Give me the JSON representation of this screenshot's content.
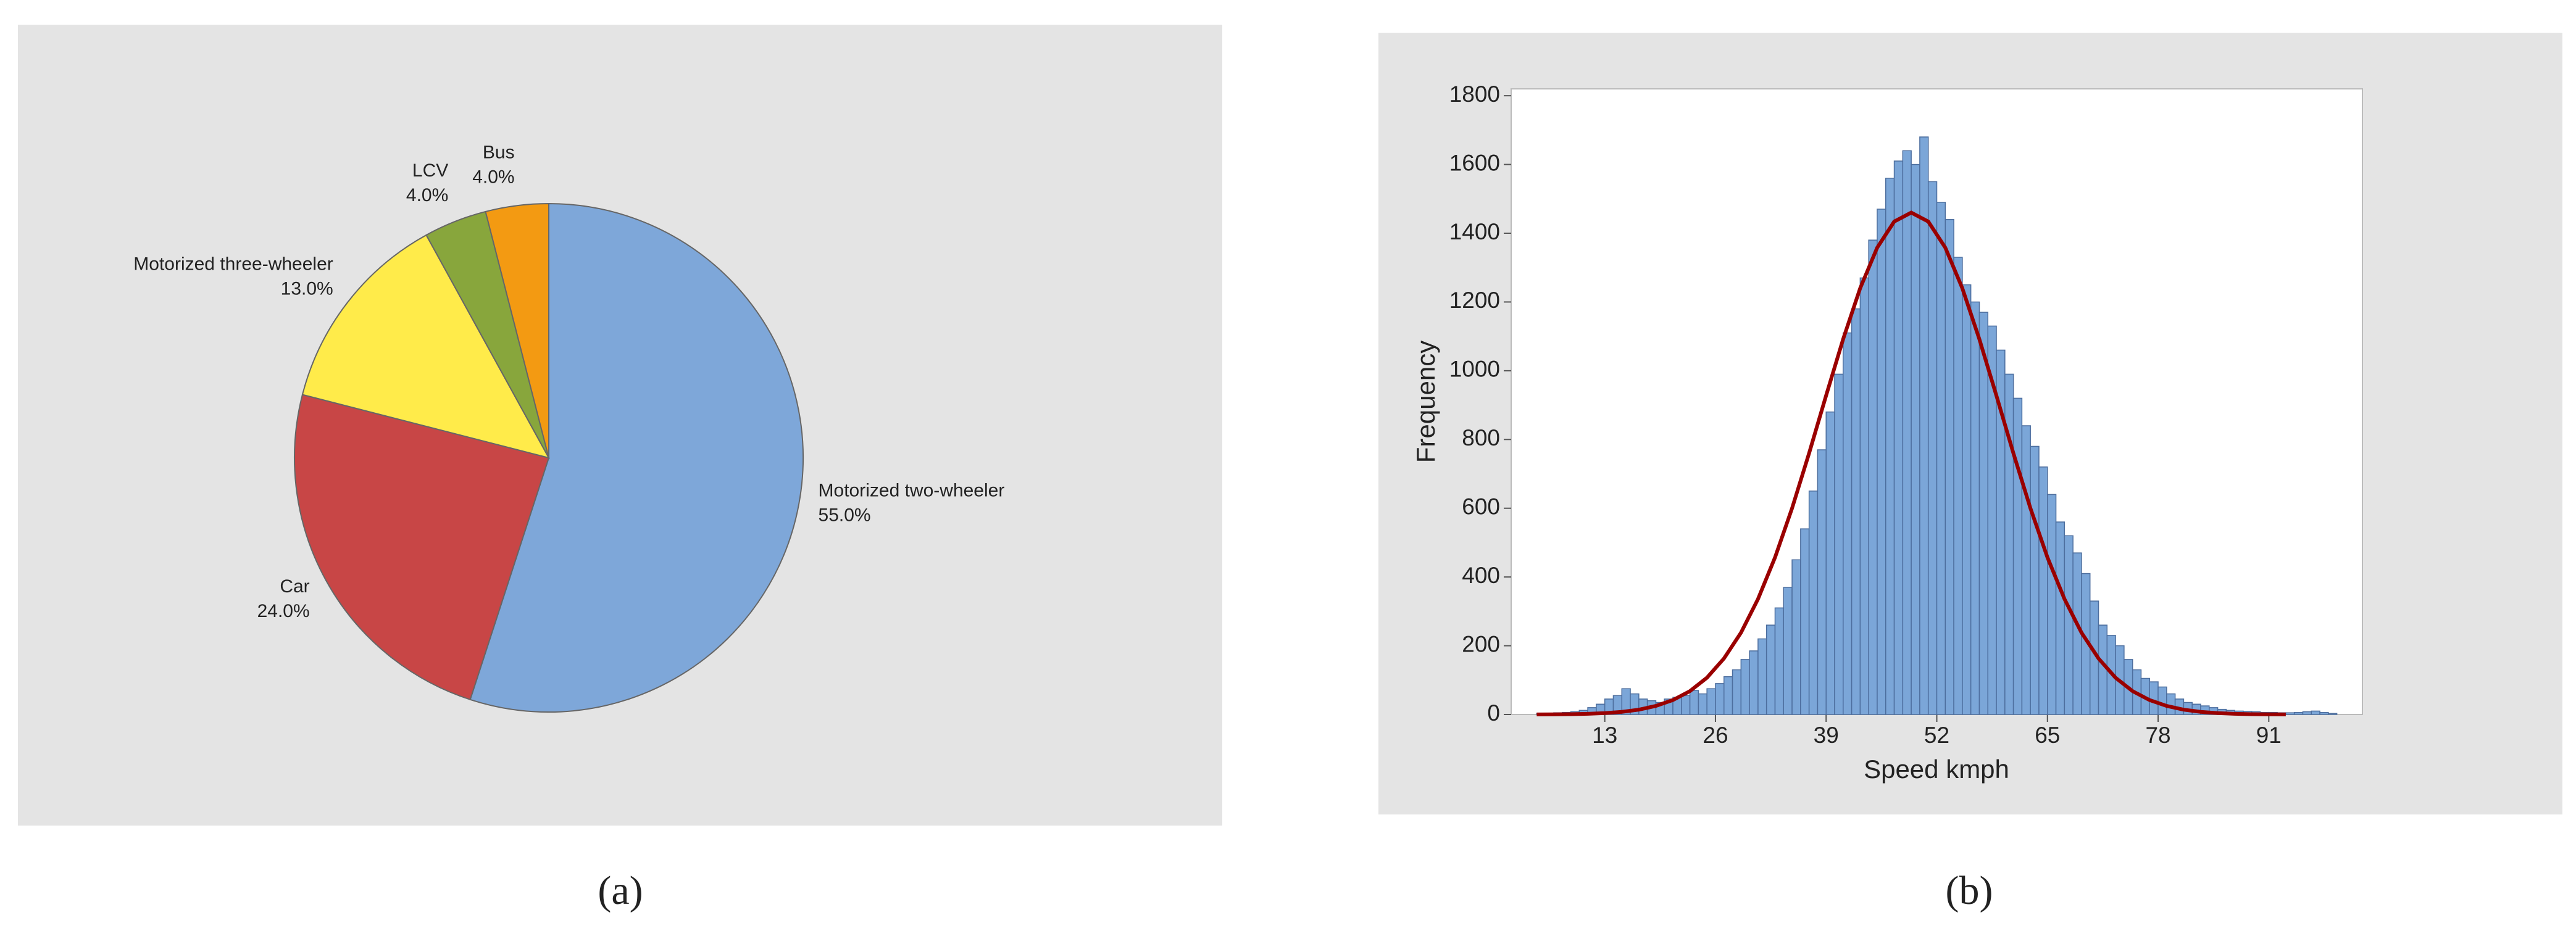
{
  "chart_data": [
    {
      "type": "pie",
      "label": "(a)",
      "categories": [
        "Motorized two-wheeler",
        "Car",
        "Motorized three-wheeler",
        "LCV",
        "Bus"
      ],
      "values": [
        55,
        24,
        13,
        4,
        4
      ],
      "value_labels": [
        "55.0%",
        "24.0%",
        "13.0%",
        "4.0%",
        "4.0%"
      ],
      "colors": [
        "#7ea7d9",
        "#c84646",
        "#ffeb4a",
        "#88a63c",
        "#f39a12"
      ]
    },
    {
      "type": "histogram",
      "label": "(b)",
      "xlabel": "Speed kmph",
      "ylabel": "Frequency",
      "bins": [
        5,
        6,
        7,
        8,
        9,
        10,
        11,
        12,
        13,
        14,
        15,
        16,
        17,
        18,
        19,
        20,
        21,
        22,
        23,
        24,
        25,
        26,
        27,
        28,
        29,
        30,
        31,
        32,
        33,
        34,
        35,
        36,
        37,
        38,
        39,
        40,
        41,
        42,
        43,
        44,
        45,
        46,
        47,
        48,
        49,
        50,
        51,
        52,
        53,
        54,
        55,
        56,
        57,
        58,
        59,
        60,
        61,
        62,
        63,
        64,
        65,
        66,
        67,
        68,
        69,
        70,
        71,
        72,
        73,
        74,
        75,
        76,
        77,
        78,
        79,
        80,
        81,
        82,
        83,
        84,
        85,
        86,
        87,
        88,
        89,
        90,
        91,
        92,
        93,
        94,
        95,
        96,
        97,
        98,
        99
      ],
      "values": [
        3,
        4,
        5,
        6,
        8,
        12,
        20,
        30,
        45,
        55,
        75,
        60,
        45,
        40,
        35,
        45,
        50,
        55,
        70,
        60,
        75,
        90,
        110,
        130,
        160,
        185,
        220,
        260,
        310,
        370,
        450,
        540,
        650,
        770,
        880,
        990,
        1110,
        1180,
        1270,
        1380,
        1470,
        1560,
        1610,
        1640,
        1600,
        1680,
        1550,
        1490,
        1440,
        1330,
        1250,
        1200,
        1170,
        1130,
        1060,
        990,
        920,
        840,
        780,
        720,
        640,
        560,
        520,
        470,
        410,
        330,
        260,
        230,
        200,
        160,
        130,
        105,
        95,
        80,
        60,
        45,
        35,
        30,
        25,
        20,
        15,
        12,
        10,
        9,
        8,
        6,
        6,
        5,
        5,
        6,
        8,
        10,
        6,
        3
      ],
      "color": "#7ba6d8",
      "fit": {
        "color": "#9a0000",
        "x": [
          5,
          7,
          9,
          11,
          13,
          15,
          17,
          19,
          21,
          23,
          25,
          27,
          29,
          31,
          33,
          35,
          37,
          39,
          41,
          43,
          45,
          47,
          49,
          51,
          53,
          55,
          57,
          59,
          61,
          63,
          65,
          67,
          69,
          71,
          73,
          75,
          77,
          79,
          81,
          83,
          85,
          87,
          89,
          91,
          93
        ],
        "values": [
          0.2,
          0.5,
          1.0,
          2.1,
          4.1,
          7.7,
          14,
          25,
          42,
          68,
          107,
          163,
          238,
          336,
          457,
          600,
          760,
          928,
          1092,
          1240,
          1358,
          1434,
          1460,
          1434,
          1358,
          1240,
          1092,
          928,
          760,
          600,
          457,
          336,
          238,
          163,
          107,
          68,
          42,
          25,
          14,
          7.7,
          4.1,
          2.1,
          1.0,
          0.5,
          0.2
        ]
      },
      "xlim": [
        2,
        102
      ],
      "xticks": [
        13,
        26,
        39,
        52,
        65,
        78,
        91
      ],
      "ylim": [
        0,
        1820
      ],
      "yticks": [
        0,
        200,
        400,
        600,
        800,
        1000,
        1200,
        1400,
        1600,
        1800
      ]
    }
  ]
}
